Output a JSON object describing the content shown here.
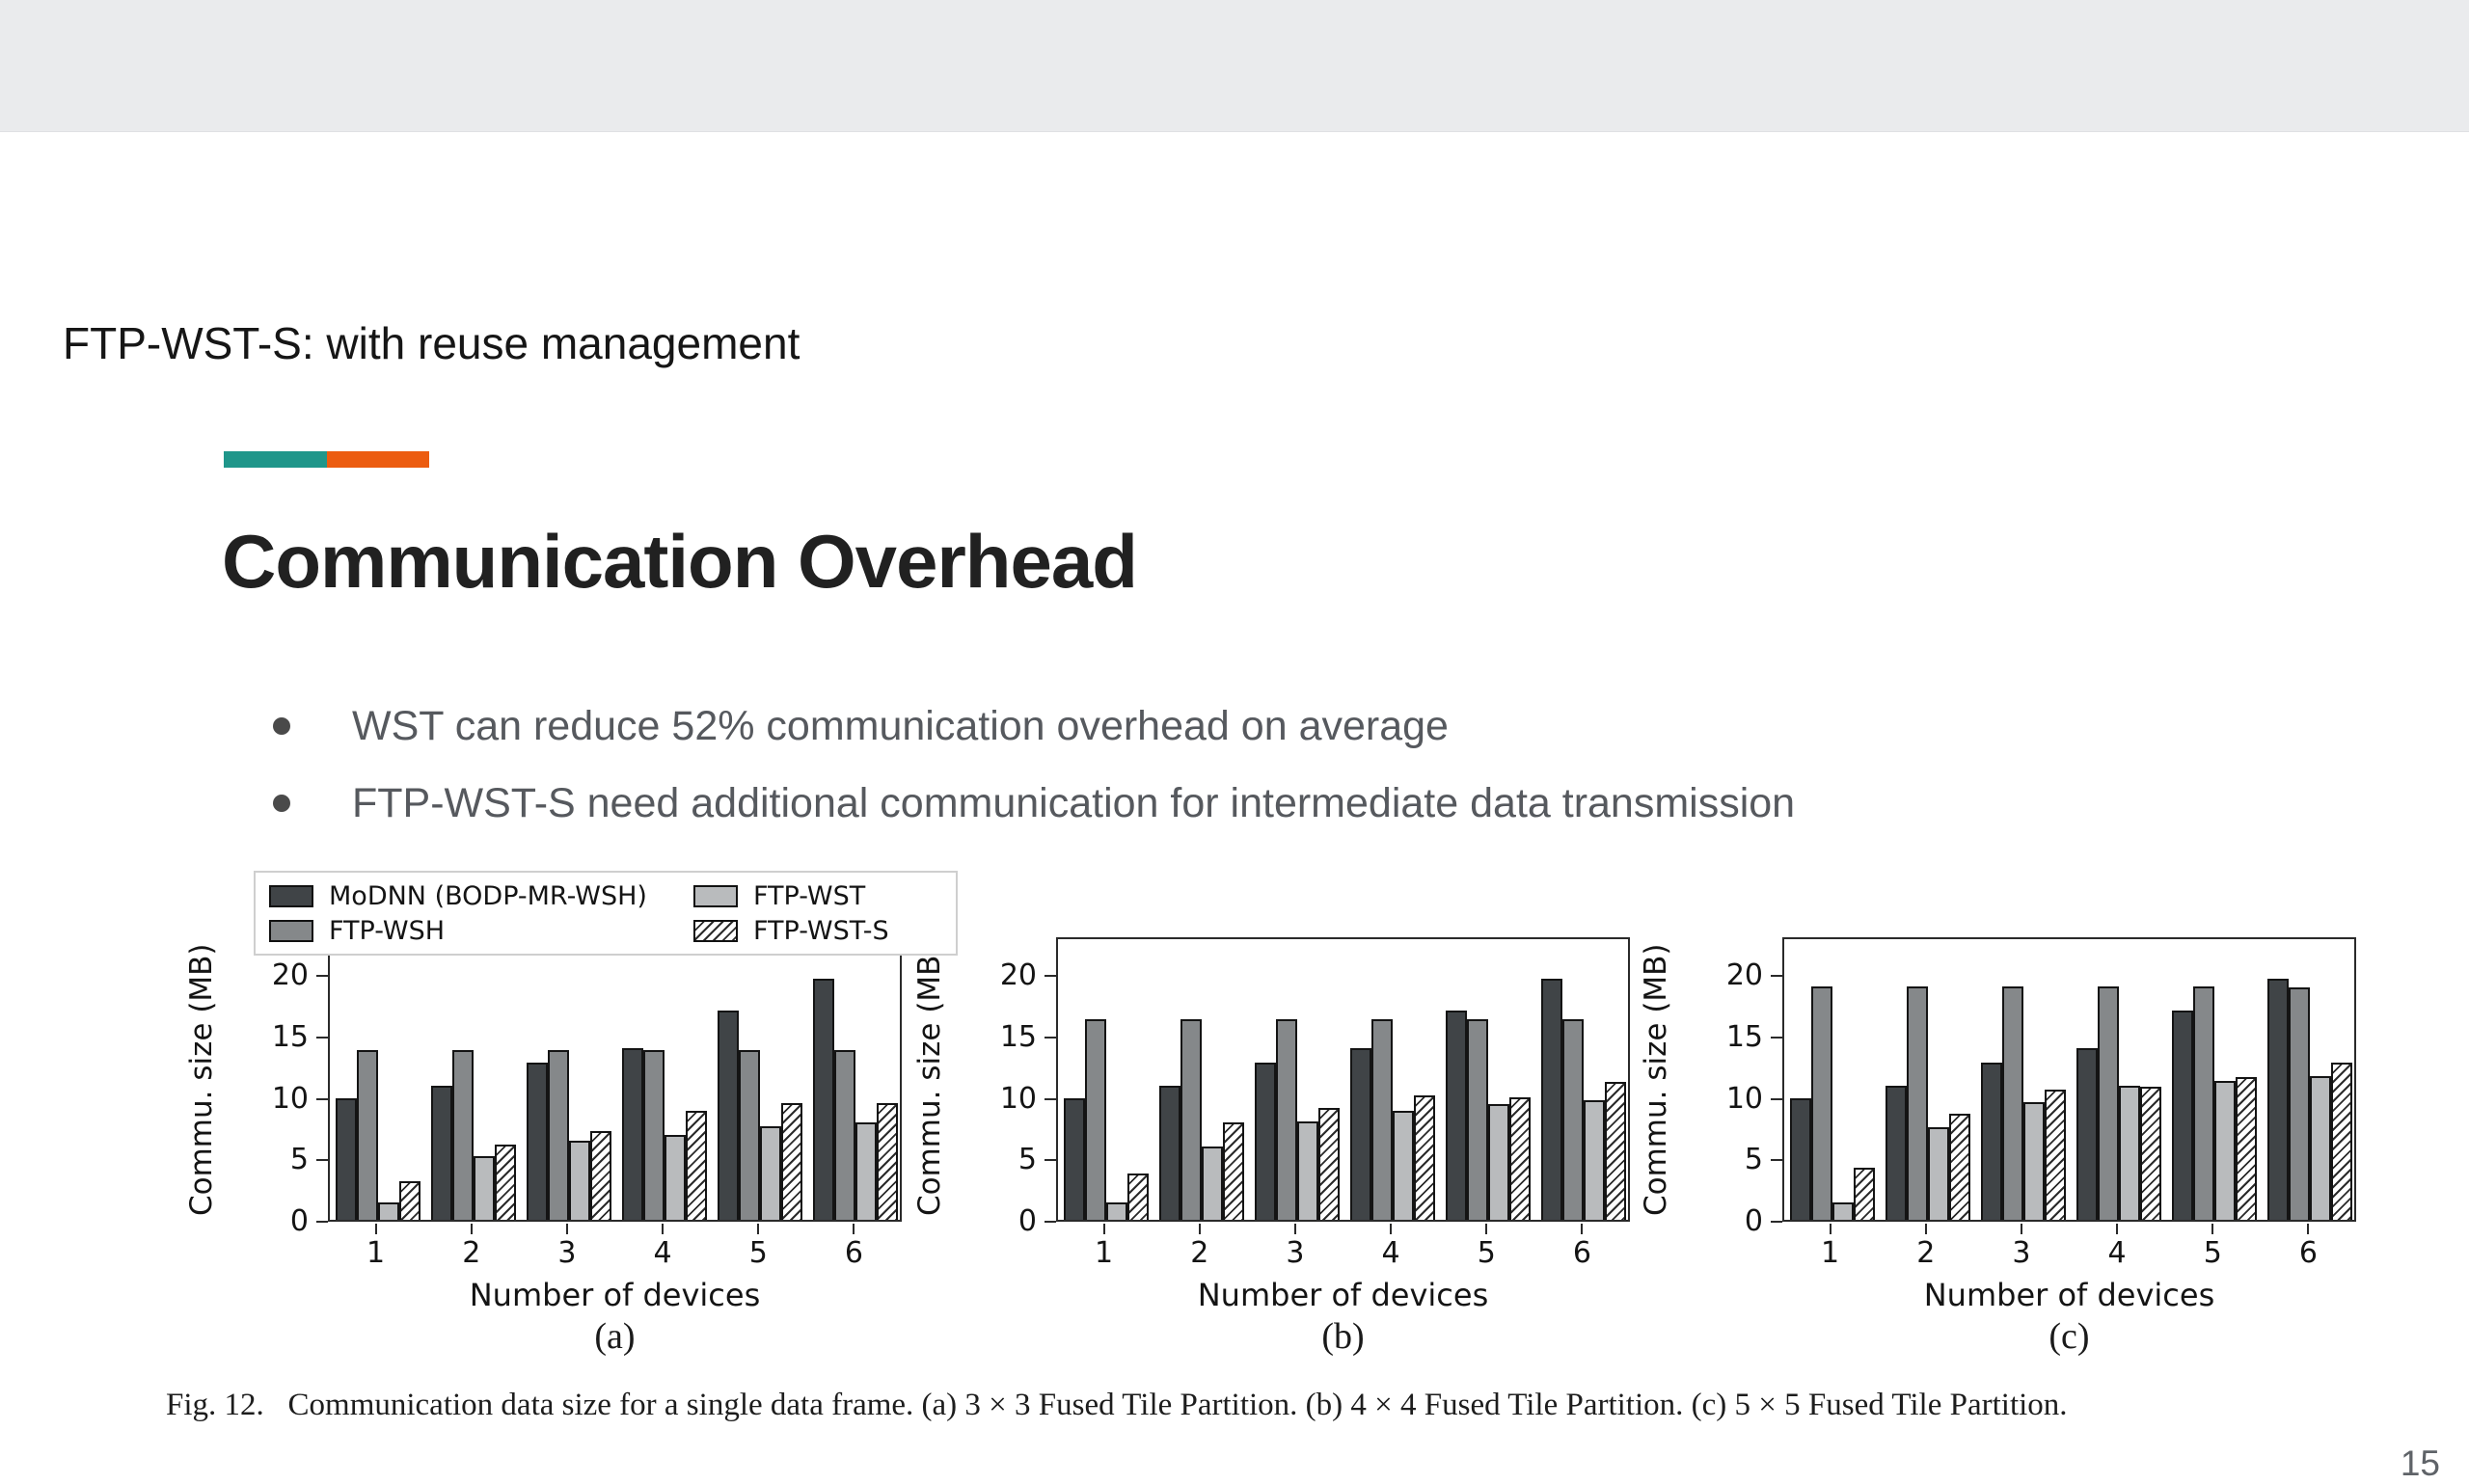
{
  "slide": {
    "header": "FTP-WST-S: with reuse management",
    "title": "Communication Overhead",
    "bullets": [
      "WST can reduce 52% communication overhead on average",
      "FTP-WST-S need additional communication for intermediate data transmission"
    ],
    "accent_colors": {
      "teal": "#1f968a",
      "orange": "#ec5c10"
    },
    "page_number": "15"
  },
  "figure": {
    "caption": "Fig. 12.   Communication data size for a single data frame. (a) 3 × 3 Fused Tile Partition. (b) 4 × 4 Fused Tile Partition. (c) 5 × 5 Fused Tile Partition.",
    "subplot_labels": [
      "(a)",
      "(b)",
      "(c)"
    ],
    "legend": [
      {
        "label": "MoDNN (BODP-MR-WSH)",
        "style": "dark",
        "color": "#404447"
      },
      {
        "label": "FTP-WSH",
        "style": "medium",
        "color": "#85888a"
      },
      {
        "label": "FTP-WST",
        "style": "light",
        "color": "#b9bbbd"
      },
      {
        "label": "FTP-WST-S",
        "style": "hatch",
        "color": "#ffffff"
      }
    ]
  },
  "chart_data": [
    {
      "type": "bar",
      "title": "(a) 3 × 3 Fused Tile Partition",
      "xlabel": "Number of devices",
      "ylabel": "Commu. size (MB)",
      "categories": [
        "1",
        "2",
        "3",
        "4",
        "5",
        "6"
      ],
      "yticks": [
        0,
        5,
        10,
        15,
        20
      ],
      "ylim": [
        0,
        23
      ],
      "legend_position": "upper-left-outside",
      "grid": false,
      "series": [
        {
          "name": "MoDNN (BODP-MR-WSH)",
          "values": [
            9.9,
            10.9,
            12.8,
            14.0,
            17.0,
            19.6
          ]
        },
        {
          "name": "FTP-WSH",
          "values": [
            13.8,
            13.8,
            13.8,
            13.8,
            13.8,
            13.8
          ]
        },
        {
          "name": "FTP-WST",
          "values": [
            1.4,
            5.2,
            6.4,
            6.9,
            7.6,
            7.9
          ]
        },
        {
          "name": "FTP-WST-S",
          "values": [
            3.1,
            6.1,
            7.2,
            8.9,
            9.5,
            9.5
          ]
        }
      ]
    },
    {
      "type": "bar",
      "title": "(b) 4 × 4 Fused Tile Partition",
      "xlabel": "Number of devices",
      "ylabel": "Commu. size (MB)",
      "categories": [
        "1",
        "2",
        "3",
        "4",
        "5",
        "6"
      ],
      "yticks": [
        0,
        5,
        10,
        15,
        20
      ],
      "ylim": [
        0,
        23
      ],
      "grid": false,
      "series": [
        {
          "name": "MoDNN (BODP-MR-WSH)",
          "values": [
            9.9,
            10.9,
            12.8,
            14.0,
            17.0,
            19.6
          ]
        },
        {
          "name": "FTP-WSH",
          "values": [
            16.3,
            16.3,
            16.3,
            16.3,
            16.3,
            16.3
          ]
        },
        {
          "name": "FTP-WST",
          "values": [
            1.4,
            6.0,
            8.0,
            8.9,
            9.4,
            9.7
          ]
        },
        {
          "name": "FTP-WST-S",
          "values": [
            3.8,
            7.9,
            9.1,
            10.1,
            10.0,
            11.2
          ]
        }
      ]
    },
    {
      "type": "bar",
      "title": "(c) 5 × 5 Fused Tile Partition",
      "xlabel": "Number of devices",
      "ylabel": "Commu. size (MB)",
      "categories": [
        "1",
        "2",
        "3",
        "4",
        "5",
        "6"
      ],
      "yticks": [
        0,
        5,
        10,
        15,
        20
      ],
      "ylim": [
        0,
        23
      ],
      "grid": false,
      "series": [
        {
          "name": "MoDNN (BODP-MR-WSH)",
          "values": [
            9.9,
            10.9,
            12.8,
            14.0,
            17.0,
            19.6
          ]
        },
        {
          "name": "FTP-WSH",
          "values": [
            19.0,
            19.0,
            19.0,
            19.0,
            19.0,
            18.9
          ]
        },
        {
          "name": "FTP-WST",
          "values": [
            1.4,
            7.5,
            9.6,
            10.9,
            11.3,
            11.7
          ]
        },
        {
          "name": "FTP-WST-S",
          "values": [
            4.2,
            8.6,
            10.6,
            10.8,
            11.6,
            12.8
          ]
        }
      ]
    }
  ]
}
